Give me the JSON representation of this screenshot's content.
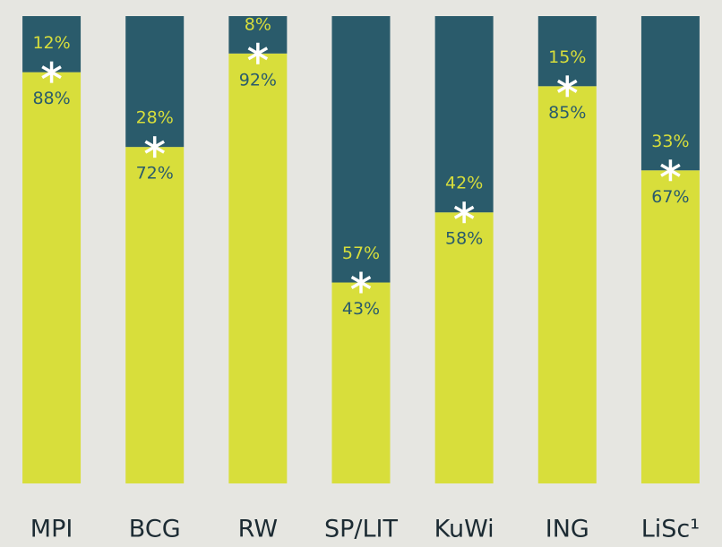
{
  "chart_data": {
    "type": "stacked_bar",
    "categories": [
      "MPI",
      "BCG",
      "RW",
      "SP/LIT",
      "KuWi",
      "ING",
      "LiSc¹"
    ],
    "series": [
      {
        "color": "#d8de3b",
        "values": [
          88,
          72,
          92,
          43,
          58,
          85,
          67
        ],
        "value_labels": [
          "88%",
          "72%",
          "92%",
          "43%",
          "58%",
          "85%",
          "67%"
        ]
      },
      {
        "color": "#2a5b6b",
        "values": [
          12,
          28,
          8,
          57,
          42,
          15,
          33
        ],
        "value_labels": [
          "12%",
          "28%",
          "8%",
          "57%",
          "42%",
          "15%",
          "33%"
        ]
      }
    ],
    "ylim": [
      0,
      100
    ]
  }
}
